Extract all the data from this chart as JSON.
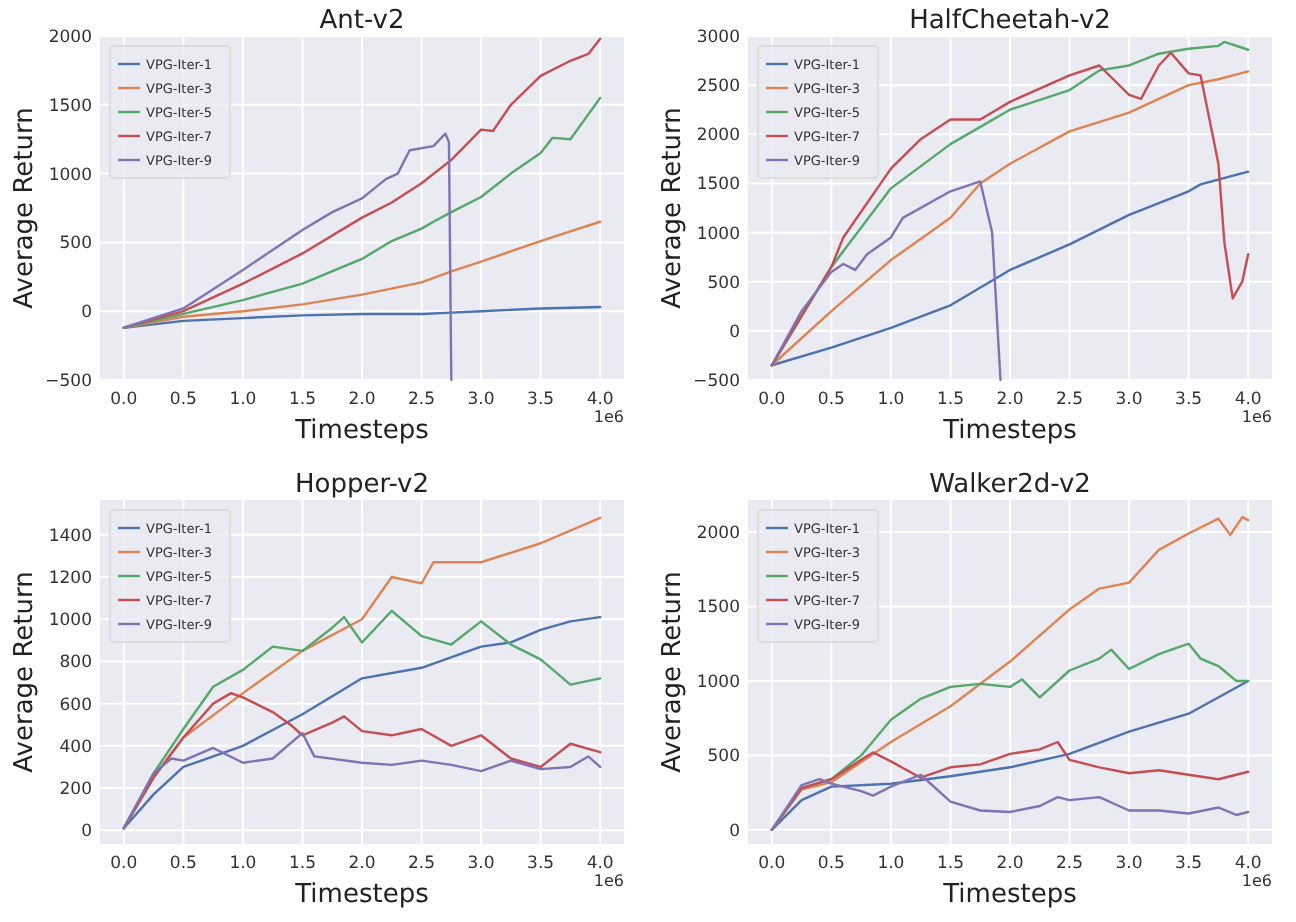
{
  "chart_data": [
    {
      "type": "line",
      "title": "Ant-v2",
      "xlabel": "Timesteps",
      "ylabel": "Average Return",
      "annotations": [
        "1e6"
      ],
      "grid": true,
      "legend": "top left",
      "xlim": [
        -0.2,
        4.2
      ],
      "xticks": [
        {
          "value": 0,
          "label": "0.0"
        },
        {
          "value": 0.5,
          "label": "0.5"
        },
        {
          "value": 1,
          "label": "1.0"
        },
        {
          "value": 1.5,
          "label": "1.5"
        },
        {
          "value": 2,
          "label": "2.0"
        },
        {
          "value": 2.5,
          "label": "2.5"
        },
        {
          "value": 3,
          "label": "3.0"
        },
        {
          "value": 3.5,
          "label": "3.5"
        },
        {
          "value": 4,
          "label": "4.0"
        }
      ],
      "ylim": [
        -500,
        2000
      ],
      "yticks": [
        -500,
        0,
        500,
        1000,
        1500,
        2000
      ],
      "series": [
        {
          "name": "VPG-Iter-1",
          "color": "#4c72b0",
          "x": [
            0,
            0.5,
            1,
            1.5,
            2,
            2.5,
            2.75,
            3,
            3.5,
            4
          ],
          "values": [
            -120,
            -70,
            -50,
            -30,
            -20,
            -20,
            -10,
            0,
            20,
            30
          ]
        },
        {
          "name": "VPG-Iter-3",
          "color": "#dd8452",
          "x": [
            0,
            0.5,
            1,
            1.5,
            2,
            2.5,
            2.75,
            3,
            3.5,
            3.75,
            4
          ],
          "values": [
            -120,
            -40,
            0,
            50,
            120,
            210,
            290,
            360,
            510,
            580,
            650
          ]
        },
        {
          "name": "VPG-Iter-5",
          "color": "#55a868",
          "x": [
            0,
            0.5,
            1,
            1.5,
            2,
            2.25,
            2.5,
            2.6,
            2.75,
            3,
            3.25,
            3.5,
            3.6,
            3.75,
            4
          ],
          "values": [
            -120,
            -20,
            80,
            200,
            380,
            510,
            600,
            650,
            720,
            830,
            1000,
            1150,
            1260,
            1250,
            1550
          ]
        },
        {
          "name": "VPG-Iter-7",
          "color": "#c44e52",
          "x": [
            0,
            0.5,
            1,
            1.5,
            2,
            2.25,
            2.5,
            2.75,
            3,
            3.1,
            3.25,
            3.5,
            3.75,
            3.9,
            4
          ],
          "values": [
            -120,
            0,
            200,
            420,
            680,
            790,
            930,
            1100,
            1320,
            1310,
            1500,
            1710,
            1820,
            1870,
            1980
          ]
        },
        {
          "name": "VPG-Iter-9",
          "color": "#8172b3",
          "x": [
            0,
            0.5,
            1,
            1.5,
            1.75,
            2,
            2.2,
            2.3,
            2.4,
            2.6,
            2.7,
            2.73,
            2.75
          ],
          "values": [
            -120,
            20,
            300,
            590,
            720,
            820,
            960,
            1000,
            1170,
            1200,
            1290,
            1230,
            -500
          ]
        }
      ]
    },
    {
      "type": "line",
      "title": "HalfCheetah-v2",
      "xlabel": "Timesteps",
      "ylabel": "Average Return",
      "annotations": [
        "1e6"
      ],
      "grid": true,
      "legend": "top left",
      "xlim": [
        -0.2,
        4.2
      ],
      "xticks": [
        {
          "value": 0,
          "label": "0.0"
        },
        {
          "value": 0.5,
          "label": "0.5"
        },
        {
          "value": 1,
          "label": "1.0"
        },
        {
          "value": 1.5,
          "label": "1.5"
        },
        {
          "value": 2,
          "label": "2.0"
        },
        {
          "value": 2.5,
          "label": "2.5"
        },
        {
          "value": 3,
          "label": "3.0"
        },
        {
          "value": 3.5,
          "label": "3.5"
        },
        {
          "value": 4,
          "label": "4.0"
        }
      ],
      "ylim": [
        -500,
        3000
      ],
      "yticks": [
        -500,
        0,
        500,
        1000,
        1500,
        2000,
        2500,
        3000
      ],
      "series": [
        {
          "name": "VPG-Iter-1",
          "color": "#4c72b0",
          "x": [
            0,
            0.5,
            1,
            1.5,
            2,
            2.5,
            3,
            3.5,
            3.6,
            4
          ],
          "values": [
            -350,
            -170,
            30,
            260,
            620,
            880,
            1180,
            1420,
            1490,
            1620
          ]
        },
        {
          "name": "VPG-Iter-3",
          "color": "#dd8452",
          "x": [
            0,
            0.5,
            1,
            1.5,
            1.75,
            2,
            2.5,
            3,
            3.5,
            3.75,
            4
          ],
          "values": [
            -350,
            200,
            720,
            1150,
            1500,
            1700,
            2030,
            2220,
            2500,
            2560,
            2640
          ]
        },
        {
          "name": "VPG-Iter-5",
          "color": "#55a868",
          "x": [
            0,
            0.25,
            0.5,
            1,
            1.5,
            2,
            2.5,
            2.75,
            3,
            3.25,
            3.5,
            3.75,
            3.8,
            4
          ],
          "values": [
            -350,
            150,
            650,
            1450,
            1900,
            2250,
            2450,
            2650,
            2700,
            2820,
            2870,
            2900,
            2940,
            2860
          ]
        },
        {
          "name": "VPG-Iter-7",
          "color": "#c44e52",
          "x": [
            0,
            0.25,
            0.5,
            0.6,
            1,
            1.25,
            1.5,
            1.75,
            2,
            2.5,
            2.75,
            3,
            3.1,
            3.25,
            3.35,
            3.5,
            3.6,
            3.75,
            3.8,
            3.87,
            3.95,
            4
          ],
          "values": [
            -350,
            150,
            650,
            950,
            1650,
            1950,
            2150,
            2150,
            2330,
            2600,
            2700,
            2400,
            2360,
            2700,
            2830,
            2620,
            2600,
            1700,
            900,
            330,
            500,
            780
          ]
        },
        {
          "name": "VPG-Iter-9",
          "color": "#8172b3",
          "x": [
            0,
            0.25,
            0.5,
            0.6,
            0.7,
            0.8,
            1,
            1.1,
            1.5,
            1.75,
            1.85,
            1.92
          ],
          "values": [
            -350,
            200,
            600,
            680,
            620,
            780,
            950,
            1150,
            1420,
            1520,
            1000,
            -500
          ]
        }
      ]
    },
    {
      "type": "line",
      "title": "Hopper-v2",
      "xlabel": "Timesteps",
      "ylabel": "Average Return",
      "annotations": [
        "1e6"
      ],
      "grid": true,
      "legend": "top left",
      "xlim": [
        -0.2,
        4.2
      ],
      "xticks": [
        {
          "value": 0,
          "label": "0.0"
        },
        {
          "value": 0.5,
          "label": "0.5"
        },
        {
          "value": 1,
          "label": "1.0"
        },
        {
          "value": 1.5,
          "label": "1.5"
        },
        {
          "value": 2,
          "label": "2.0"
        },
        {
          "value": 2.5,
          "label": "2.5"
        },
        {
          "value": 3,
          "label": "3.0"
        },
        {
          "value": 3.5,
          "label": "3.5"
        },
        {
          "value": 4,
          "label": "4.0"
        }
      ],
      "ylim": [
        -65,
        1565
      ],
      "yticks": [
        0,
        200,
        400,
        600,
        800,
        1000,
        1200,
        1400
      ],
      "series": [
        {
          "name": "VPG-Iter-1",
          "color": "#4c72b0",
          "x": [
            0,
            0.25,
            0.5,
            1,
            1.5,
            2,
            2.5,
            3,
            3.25,
            3.5,
            3.75,
            4
          ],
          "values": [
            10,
            170,
            300,
            400,
            550,
            720,
            770,
            870,
            890,
            950,
            990,
            1010
          ]
        },
        {
          "name": "VPG-Iter-3",
          "color": "#dd8452",
          "x": [
            0,
            0.25,
            0.5,
            1,
            1.5,
            2,
            2.25,
            2.5,
            2.6,
            3,
            3.5,
            4
          ],
          "values": [
            10,
            250,
            440,
            650,
            850,
            1000,
            1200,
            1170,
            1270,
            1270,
            1360,
            1480
          ]
        },
        {
          "name": "VPG-Iter-5",
          "color": "#55a868",
          "x": [
            0,
            0.25,
            0.5,
            0.75,
            1,
            1.25,
            1.5,
            1.75,
            1.85,
            2,
            2.25,
            2.5,
            2.75,
            3,
            3.25,
            3.5,
            3.75,
            4
          ],
          "values": [
            10,
            270,
            480,
            680,
            760,
            870,
            850,
            960,
            1010,
            890,
            1040,
            920,
            880,
            990,
            880,
            810,
            690,
            720
          ]
        },
        {
          "name": "VPG-Iter-7",
          "color": "#c44e52",
          "x": [
            0,
            0.25,
            0.5,
            0.75,
            0.9,
            1,
            1.25,
            1.4,
            1.5,
            1.75,
            1.85,
            2,
            2.25,
            2.5,
            2.75,
            3,
            3.25,
            3.5,
            3.75,
            4
          ],
          "values": [
            10,
            250,
            440,
            600,
            650,
            630,
            560,
            500,
            450,
            510,
            540,
            470,
            450,
            480,
            400,
            450,
            340,
            300,
            410,
            370
          ]
        },
        {
          "name": "VPG-Iter-9",
          "color": "#8172b3",
          "x": [
            0,
            0.25,
            0.4,
            0.5,
            0.75,
            1,
            1.25,
            1.5,
            1.6,
            2,
            2.25,
            2.5,
            2.75,
            3,
            3.25,
            3.5,
            3.75,
            3.9,
            4
          ],
          "values": [
            10,
            270,
            340,
            330,
            390,
            320,
            340,
            460,
            350,
            320,
            310,
            330,
            310,
            280,
            330,
            290,
            300,
            350,
            300
          ]
        }
      ]
    },
    {
      "type": "line",
      "title": "Walker2d-v2",
      "xlabel": "Timesteps",
      "ylabel": "Average Return",
      "annotations": [
        "1e6"
      ],
      "grid": true,
      "legend": "top left",
      "xlim": [
        -0.2,
        4.2
      ],
      "xticks": [
        {
          "value": 0,
          "label": "0.0"
        },
        {
          "value": 0.5,
          "label": "0.5"
        },
        {
          "value": 1,
          "label": "1.0"
        },
        {
          "value": 1.5,
          "label": "1.5"
        },
        {
          "value": 2,
          "label": "2.0"
        },
        {
          "value": 2.5,
          "label": "2.5"
        },
        {
          "value": 3,
          "label": "3.0"
        },
        {
          "value": 3.5,
          "label": "3.5"
        },
        {
          "value": 4,
          "label": "4.0"
        }
      ],
      "ylim": [
        -95,
        2215
      ],
      "yticks": [
        0,
        500,
        1000,
        1500,
        2000
      ],
      "series": [
        {
          "name": "VPG-Iter-1",
          "color": "#4c72b0",
          "x": [
            0,
            0.25,
            0.5,
            1,
            1.5,
            2,
            2.5,
            3,
            3.5,
            4
          ],
          "values": [
            0,
            200,
            290,
            310,
            360,
            420,
            510,
            660,
            780,
            1000
          ]
        },
        {
          "name": "VPG-Iter-3",
          "color": "#dd8452",
          "x": [
            0,
            0.25,
            0.5,
            1,
            1.5,
            2,
            2.5,
            2.75,
            3,
            3.25,
            3.5,
            3.75,
            3.85,
            3.95,
            4
          ],
          "values": [
            0,
            270,
            320,
            590,
            830,
            1130,
            1480,
            1620,
            1660,
            1880,
            1990,
            2090,
            1980,
            2100,
            2080
          ]
        },
        {
          "name": "VPG-Iter-5",
          "color": "#55a868",
          "x": [
            0,
            0.25,
            0.5,
            0.75,
            1,
            1.25,
            1.5,
            1.75,
            2,
            2.1,
            2.25,
            2.5,
            2.75,
            2.85,
            3,
            3.25,
            3.5,
            3.6,
            3.75,
            3.9,
            4
          ],
          "values": [
            0,
            280,
            340,
            500,
            740,
            880,
            960,
            980,
            960,
            1010,
            890,
            1070,
            1150,
            1210,
            1080,
            1180,
            1250,
            1150,
            1100,
            1000,
            1000
          ]
        },
        {
          "name": "VPG-Iter-7",
          "color": "#c44e52",
          "x": [
            0,
            0.25,
            0.5,
            0.75,
            0.85,
            1,
            1.25,
            1.5,
            1.75,
            2,
            2.25,
            2.4,
            2.5,
            2.75,
            3,
            3.25,
            3.5,
            3.75,
            4
          ],
          "values": [
            0,
            280,
            340,
            470,
            520,
            460,
            350,
            420,
            440,
            510,
            540,
            590,
            470,
            420,
            380,
            400,
            370,
            340,
            390
          ]
        },
        {
          "name": "VPG-Iter-9",
          "color": "#8172b3",
          "x": [
            0,
            0.25,
            0.4,
            0.5,
            0.75,
            0.85,
            1,
            1.25,
            1.5,
            1.75,
            2,
            2.25,
            2.4,
            2.5,
            2.75,
            3,
            3.25,
            3.5,
            3.75,
            3.9,
            4
          ],
          "values": [
            0,
            300,
            340,
            310,
            260,
            230,
            290,
            370,
            190,
            130,
            120,
            160,
            220,
            200,
            220,
            130,
            130,
            110,
            150,
            100,
            120
          ]
        }
      ]
    }
  ]
}
